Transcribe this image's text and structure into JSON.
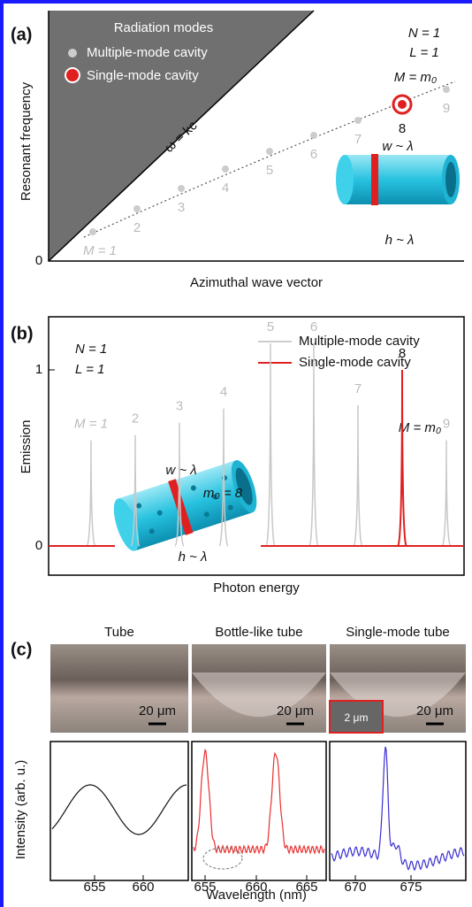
{
  "panel_a": {
    "label": "(a)",
    "legend_title": "Radiation modes",
    "legend": [
      "Multiple-mode cavity",
      "Single-mode cavity"
    ],
    "params": [
      "N = 1",
      "L = 1",
      "M = m₀"
    ],
    "light_line": "ω = kc",
    "modes": [
      "M = 1",
      2,
      3,
      4,
      5,
      6,
      7,
      8,
      9
    ],
    "width_label": "w ~ λ",
    "height_label": "h ~ λ",
    "y_label": "Resonant frequency",
    "x_label": "Azimuthal wave vector",
    "origin": 0
  },
  "panel_b": {
    "label": "(b)",
    "params": [
      "N = 1",
      "L = 1"
    ],
    "legend": [
      "Multiple-mode cavity",
      "Single-mode cavity"
    ],
    "modes": [
      "M = 1",
      2,
      3,
      4,
      5,
      6,
      7,
      8,
      9
    ],
    "mode_eq": "M = m₀",
    "width_label": "w ~ λ",
    "m_label": "m₀ = 8",
    "height_label": "h ~ λ",
    "y_label": "Emission",
    "yticks": [
      0,
      1
    ],
    "x_label": "Photon energy"
  },
  "panel_c": {
    "label": "(c)",
    "titles": [
      "Tube",
      "Bottle-like tube",
      "Single-mode tube"
    ],
    "scale_bars": [
      "20 μm",
      "20 μm",
      "20 μm"
    ],
    "inset_scale": "2 μm",
    "y_label": "Intensity (arb. u.)",
    "x_label": "Wavelength (nm)",
    "xticks": [
      [
        655,
        660
      ],
      [
        655,
        660,
        665
      ],
      [
        670,
        675
      ]
    ]
  }
}
